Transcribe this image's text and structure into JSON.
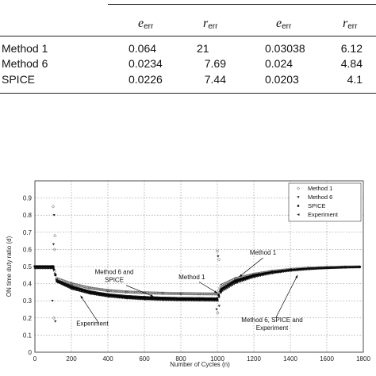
{
  "table": {
    "headers": [
      {
        "sym": "e",
        "sub": "err"
      },
      {
        "sym": "r",
        "sub": "err"
      },
      {
        "sym": "e",
        "sub": "err"
      },
      {
        "sym": "r",
        "sub": "err"
      }
    ],
    "rows": [
      {
        "name": "Method 1",
        "c1": "0.064",
        "c2": "21",
        "c3": "0.03038",
        "c4": "6.12"
      },
      {
        "name": "Method 6",
        "c1": "0.0234",
        "c2": "7.69",
        "c3": "0.024",
        "c4": "4.84"
      },
      {
        "name": "SPICE",
        "c1": "0.0226",
        "c2": "7.44",
        "c3": "0.0203",
        "c4": "4.1"
      }
    ]
  },
  "chart_data": {
    "type": "scatter",
    "xlabel": "Number of Cycles (n)",
    "ylabel": "ON time duty ratio (d)",
    "xlim": [
      0,
      1800
    ],
    "ylim": [
      0,
      1
    ],
    "xticks": [
      0,
      200,
      400,
      600,
      800,
      1000,
      1200,
      1400,
      1600,
      1800
    ],
    "yticks": [
      0,
      0.1,
      0.2,
      0.3,
      0.4,
      0.5,
      0.6,
      0.7,
      0.8,
      0.9
    ],
    "grid": true,
    "legend": {
      "position": "top-right",
      "entries": [
        "Method 1",
        "Method 6",
        "SPICE",
        "Experiment"
      ]
    },
    "series": [
      {
        "name": "Method 1",
        "marker": "diamond",
        "x": [
          0,
          100,
          120,
          200,
          300,
          400,
          500,
          600,
          700,
          800,
          900,
          1000,
          1020,
          1100,
          1200,
          1300,
          1400,
          1500,
          1600,
          1700,
          1780
        ],
        "y": [
          0.5,
          0.5,
          0.43,
          0.4,
          0.375,
          0.36,
          0.352,
          0.347,
          0.344,
          0.342,
          0.341,
          0.34,
          0.39,
          0.43,
          0.455,
          0.472,
          0.483,
          0.49,
          0.494,
          0.497,
          0.498
        ]
      },
      {
        "name": "Method 6",
        "marker": "triangle-down",
        "x": [
          0,
          100,
          120,
          200,
          300,
          400,
          500,
          600,
          700,
          800,
          900,
          1000,
          1020,
          1100,
          1200,
          1300,
          1400,
          1500,
          1600,
          1700,
          1780
        ],
        "y": [
          0.5,
          0.5,
          0.42,
          0.385,
          0.355,
          0.338,
          0.328,
          0.322,
          0.318,
          0.316,
          0.315,
          0.314,
          0.37,
          0.42,
          0.45,
          0.468,
          0.48,
          0.488,
          0.493,
          0.496,
          0.498
        ]
      },
      {
        "name": "SPICE",
        "marker": "dot",
        "x": [
          0,
          100,
          120,
          200,
          300,
          400,
          500,
          600,
          700,
          800,
          900,
          1000,
          1020,
          1100,
          1200,
          1300,
          1400,
          1500,
          1600,
          1700,
          1780
        ],
        "y": [
          0.5,
          0.5,
          0.415,
          0.38,
          0.35,
          0.333,
          0.323,
          0.317,
          0.313,
          0.311,
          0.31,
          0.309,
          0.365,
          0.415,
          0.447,
          0.466,
          0.479,
          0.487,
          0.492,
          0.496,
          0.498
        ]
      },
      {
        "name": "Experiment",
        "marker": "triangle-left",
        "x": [
          0,
          100,
          120,
          200,
          300,
          400,
          500,
          600,
          700,
          800,
          900,
          1000,
          1020,
          1100,
          1200,
          1300,
          1400,
          1500,
          1600,
          1700,
          1780
        ],
        "y": [
          0.49,
          0.49,
          0.41,
          0.37,
          0.342,
          0.325,
          0.315,
          0.309,
          0.305,
          0.303,
          0.302,
          0.301,
          0.355,
          0.405,
          0.44,
          0.462,
          0.476,
          0.485,
          0.491,
          0.495,
          0.497
        ]
      }
    ],
    "outliers": [
      {
        "x": 100,
        "y": 0.85
      },
      {
        "x": 105,
        "y": 0.8
      },
      {
        "x": 110,
        "y": 0.68
      },
      {
        "x": 102,
        "y": 0.63
      },
      {
        "x": 108,
        "y": 0.6
      },
      {
        "x": 96,
        "y": 0.3
      },
      {
        "x": 104,
        "y": 0.2
      },
      {
        "x": 112,
        "y": 0.18
      },
      {
        "x": 1000,
        "y": 0.59
      },
      {
        "x": 1004,
        "y": 0.56
      },
      {
        "x": 1008,
        "y": 0.54
      },
      {
        "x": 996,
        "y": 0.25
      },
      {
        "x": 1002,
        "y": 0.23
      },
      {
        "x": 1010,
        "y": 0.27
      }
    ],
    "annotations": [
      {
        "text": "Method 1",
        "x": 860,
        "y": 0.425
      },
      {
        "text": "Method 6 and",
        "x": 435,
        "y": 0.455
      },
      {
        "text": "SPICE",
        "x": 435,
        "y": 0.41
      },
      {
        "text": "Experiment",
        "x": 315,
        "y": 0.155
      },
      {
        "text": "Method 1",
        "x": 1250,
        "y": 0.57
      },
      {
        "text": "Method 6, SPICE and",
        "x": 1300,
        "y": 0.175
      },
      {
        "text": "Experiment",
        "x": 1300,
        "y": 0.13
      }
    ]
  }
}
